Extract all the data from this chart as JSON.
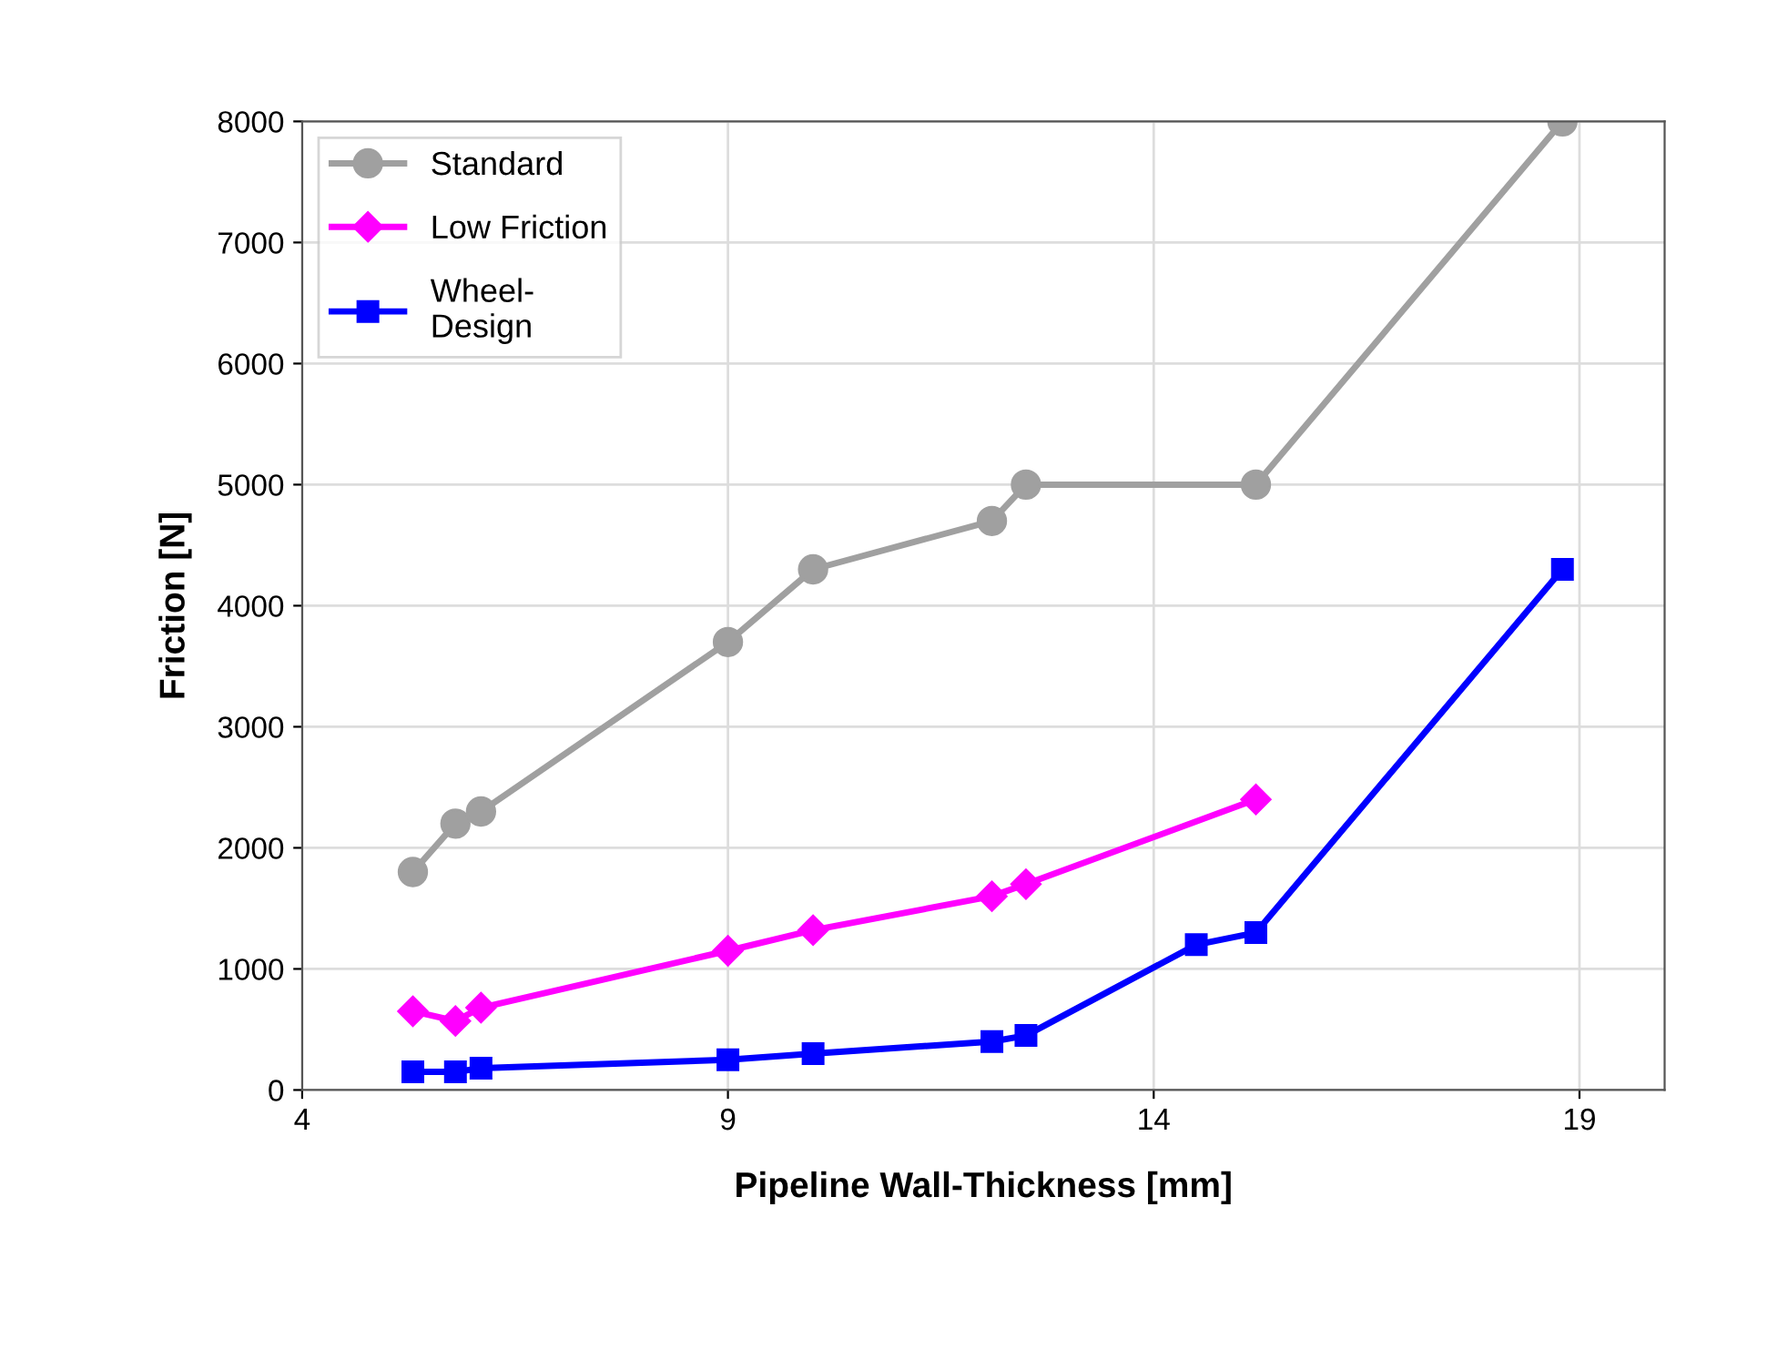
{
  "chart_data": {
    "type": "line",
    "xlabel": "Pipeline Wall-Thickness [mm]",
    "ylabel": "Friction [N]",
    "xlim": [
      4,
      20
    ],
    "xticks": [
      4,
      9,
      14,
      19
    ],
    "ylim": [
      0,
      8000
    ],
    "yticks": [
      0,
      1000,
      2000,
      3000,
      4000,
      5000,
      6000,
      7000,
      8000
    ],
    "grid": true,
    "legend": "top left",
    "series": [
      {
        "name": "Standard",
        "color": "#a0a0a0",
        "marker": "circle",
        "x": [
          5.3,
          5.8,
          6.1,
          9,
          10,
          12.1,
          12.5,
          15.2,
          18.8
        ],
        "values": [
          1800,
          2200,
          2300,
          3700,
          4300,
          4700,
          5000,
          5000,
          8000
        ]
      },
      {
        "name": "Low Friction",
        "color": "#ff00ff",
        "marker": "diamond",
        "x": [
          5.3,
          5.8,
          6.1,
          9,
          10,
          12.1,
          12.5,
          15.2
        ],
        "values": [
          650,
          570,
          680,
          1150,
          1320,
          1600,
          1700,
          2400
        ]
      },
      {
        "name": "Wheel-\nDesign",
        "color": "#0000ff",
        "marker": "square",
        "x": [
          5.3,
          5.8,
          6.1,
          9,
          10,
          12.1,
          12.5,
          14.5,
          15.2,
          18.8
        ],
        "values": [
          150,
          150,
          180,
          250,
          300,
          400,
          450,
          1200,
          1300,
          4300
        ]
      }
    ]
  }
}
